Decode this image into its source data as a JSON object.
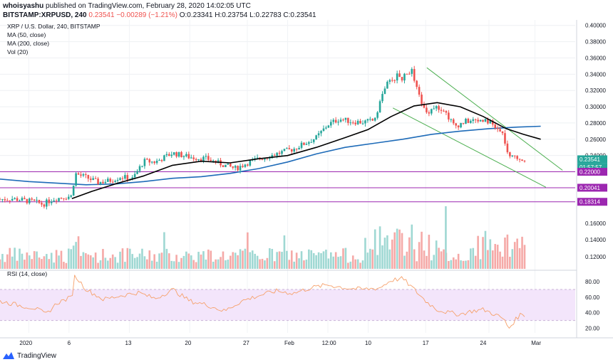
{
  "header": {
    "user": "whoisyashu",
    "published": "published on TradingView.com, February 28, 2020 14:02:05 UTC",
    "symbol": "BITSTAMP:XRPUSD, 240",
    "change_prefix": "",
    "change": "0.23541 −0.00289 (−1.21%)",
    "ohlc": "O:0.23341 H:0.23754 L:0.22783 C:0.23541"
  },
  "legend": {
    "title": "XRP / U.S. Dollar, 240, BITSTAMP",
    "ma50": "MA (50, close)",
    "ma200": "MA (200, close)",
    "vol": "Vol (20)",
    "rsi": "RSI (14, close)"
  },
  "footer": {
    "brand": "TradingView"
  },
  "colors": {
    "up": "#26a69a",
    "down": "#ef5350",
    "ma50": "#000000",
    "ma200": "#1e6bb8",
    "channel": "#4caf50",
    "level": "#9c27b0",
    "rsi_line": "#f6a16b",
    "rsi_band": "#f3e5fb",
    "vol_up": "#9fd8d3",
    "vol_down": "#f5a9a7"
  },
  "chart_data": {
    "type": "candlestick",
    "price_axis": {
      "ticks": [
        "0.40000",
        "0.38000",
        "0.36000",
        "0.34000",
        "0.32000",
        "0.30000",
        "0.28000",
        "0.26000",
        "0.24000"
      ],
      "ylim": [
        0.175,
        0.405
      ]
    },
    "vol_axis": {
      "ticks": [
        "0.16000",
        "0.14000",
        "0.12000"
      ]
    },
    "rsi_axis": {
      "ticks": [
        "80.00",
        "60.00",
        "40.00",
        "20.00"
      ],
      "ylim": [
        14,
        92
      ],
      "band": [
        30,
        70
      ]
    },
    "x_labels": [
      "2020",
      "6",
      "13",
      "20",
      "27",
      "Feb",
      "12:00",
      "10",
      "17",
      "24",
      "Mar"
    ],
    "price_labels": [
      {
        "text": "0.23541",
        "bg": "#26a69a"
      },
      {
        "text": "01:57:57",
        "bg": "#26a69a"
      },
      {
        "text": "0.22000",
        "bg": "#9c27b0"
      },
      {
        "text": "0.20041",
        "bg": "#9c27b0"
      },
      {
        "text": "0.18314",
        "bg": "#9c27b0"
      }
    ],
    "levels": [
      0.22,
      0.2004,
      0.1831
    ],
    "channel": {
      "upper": [
        [
          0.742,
          0.348
        ],
        [
          0.978,
          0.2218
        ]
      ],
      "lower": [
        [
          0.683,
          0.2985
        ],
        [
          0.949,
          0.201
        ]
      ]
    },
    "price_path": [
      [
        0.0,
        0.186
      ],
      [
        0.02,
        0.187
      ],
      [
        0.04,
        0.185
      ],
      [
        0.06,
        0.183
      ],
      [
        0.075,
        0.18
      ],
      [
        0.09,
        0.186
      ],
      [
        0.11,
        0.189
      ],
      [
        0.125,
        0.19
      ],
      [
        0.13,
        0.218
      ],
      [
        0.15,
        0.213
      ],
      [
        0.17,
        0.207
      ],
      [
        0.19,
        0.209
      ],
      [
        0.21,
        0.214
      ],
      [
        0.23,
        0.211
      ],
      [
        0.25,
        0.233
      ],
      [
        0.27,
        0.232
      ],
      [
        0.3,
        0.243
      ],
      [
        0.33,
        0.238
      ],
      [
        0.36,
        0.236
      ],
      [
        0.39,
        0.228
      ],
      [
        0.41,
        0.224
      ],
      [
        0.43,
        0.231
      ],
      [
        0.45,
        0.236
      ],
      [
        0.47,
        0.24
      ],
      [
        0.49,
        0.244
      ],
      [
        0.51,
        0.248
      ],
      [
        0.53,
        0.255
      ],
      [
        0.55,
        0.262
      ],
      [
        0.57,
        0.278
      ],
      [
        0.59,
        0.285
      ],
      [
        0.61,
        0.282
      ],
      [
        0.63,
        0.281
      ],
      [
        0.65,
        0.283
      ],
      [
        0.67,
        0.326
      ],
      [
        0.69,
        0.338
      ],
      [
        0.7,
        0.335
      ],
      [
        0.715,
        0.346
      ],
      [
        0.725,
        0.32
      ],
      [
        0.74,
        0.292
      ],
      [
        0.755,
        0.3
      ],
      [
        0.77,
        0.298
      ],
      [
        0.79,
        0.276
      ],
      [
        0.81,
        0.282
      ],
      [
        0.83,
        0.283
      ],
      [
        0.845,
        0.285
      ],
      [
        0.86,
        0.275
      ],
      [
        0.875,
        0.265
      ],
      [
        0.885,
        0.235
      ],
      [
        0.895,
        0.24
      ],
      [
        0.905,
        0.236
      ],
      [
        0.912,
        0.235
      ]
    ],
    "ma50_path": [
      [
        0.125,
        0.187
      ],
      [
        0.16,
        0.196
      ],
      [
        0.2,
        0.205
      ],
      [
        0.25,
        0.215
      ],
      [
        0.3,
        0.228
      ],
      [
        0.35,
        0.233
      ],
      [
        0.4,
        0.231
      ],
      [
        0.45,
        0.236
      ],
      [
        0.5,
        0.24
      ],
      [
        0.55,
        0.25
      ],
      [
        0.6,
        0.262
      ],
      [
        0.64,
        0.272
      ],
      [
        0.68,
        0.288
      ],
      [
        0.72,
        0.301
      ],
      [
        0.76,
        0.305
      ],
      [
        0.8,
        0.3
      ],
      [
        0.84,
        0.288
      ],
      [
        0.88,
        0.273
      ],
      [
        0.91,
        0.266
      ],
      [
        0.94,
        0.26
      ]
    ],
    "ma200_path": [
      [
        0.0,
        0.211
      ],
      [
        0.05,
        0.208
      ],
      [
        0.1,
        0.206
      ],
      [
        0.15,
        0.204
      ],
      [
        0.2,
        0.205
      ],
      [
        0.25,
        0.208
      ],
      [
        0.3,
        0.212
      ],
      [
        0.35,
        0.214
      ],
      [
        0.4,
        0.218
      ],
      [
        0.45,
        0.224
      ],
      [
        0.5,
        0.232
      ],
      [
        0.55,
        0.242
      ],
      [
        0.6,
        0.25
      ],
      [
        0.65,
        0.255
      ],
      [
        0.7,
        0.26
      ],
      [
        0.75,
        0.266
      ],
      [
        0.8,
        0.27
      ],
      [
        0.85,
        0.273
      ],
      [
        0.9,
        0.275
      ],
      [
        0.94,
        0.276
      ]
    ],
    "rsi_path": [
      [
        0.0,
        55
      ],
      [
        0.03,
        50
      ],
      [
        0.06,
        46
      ],
      [
        0.08,
        38
      ],
      [
        0.1,
        53
      ],
      [
        0.125,
        60
      ],
      [
        0.13,
        88
      ],
      [
        0.15,
        70
      ],
      [
        0.18,
        57
      ],
      [
        0.21,
        62
      ],
      [
        0.24,
        66
      ],
      [
        0.27,
        58
      ],
      [
        0.3,
        70
      ],
      [
        0.33,
        55
      ],
      [
        0.36,
        50
      ],
      [
        0.39,
        42
      ],
      [
        0.42,
        55
      ],
      [
        0.45,
        62
      ],
      [
        0.48,
        68
      ],
      [
        0.51,
        65
      ],
      [
        0.54,
        72
      ],
      [
        0.57,
        76
      ],
      [
        0.6,
        72
      ],
      [
        0.63,
        70
      ],
      [
        0.66,
        72
      ],
      [
        0.68,
        82
      ],
      [
        0.7,
        84
      ],
      [
        0.72,
        70
      ],
      [
        0.74,
        55
      ],
      [
        0.76,
        44
      ],
      [
        0.78,
        40
      ],
      [
        0.8,
        38
      ],
      [
        0.82,
        42
      ],
      [
        0.84,
        44
      ],
      [
        0.86,
        38
      ],
      [
        0.875,
        32
      ],
      [
        0.885,
        20
      ],
      [
        0.895,
        30
      ],
      [
        0.905,
        38
      ],
      [
        0.912,
        37
      ]
    ]
  }
}
